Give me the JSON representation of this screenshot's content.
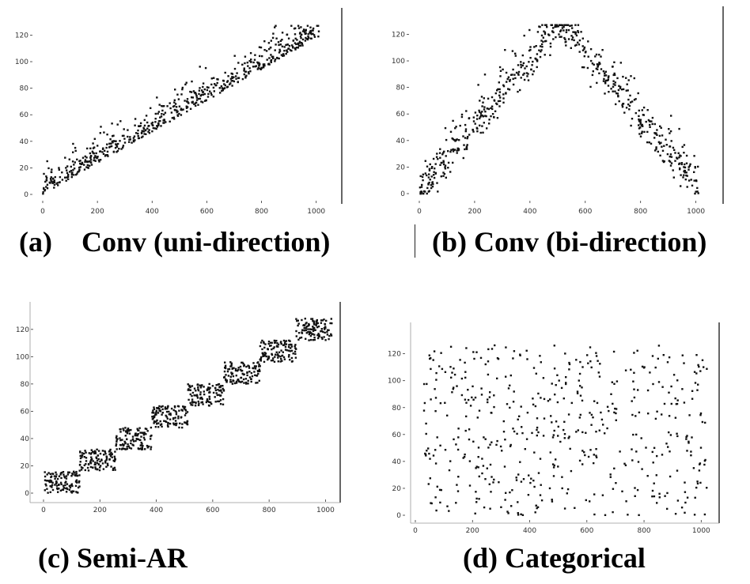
{
  "captions": {
    "a": "(a)",
    "a_text": "Conv (uni-direction)",
    "b": "(b) Conv (bi-direction)",
    "c": "(c) Semi-AR",
    "d": "(d) Categorical"
  },
  "colors": {
    "point": "#111111",
    "axis": "#333333",
    "frame": "#000000"
  },
  "chart_data": [
    {
      "id": "a",
      "type": "scatter",
      "xlim": [
        0,
        1024
      ],
      "ylim": [
        0,
        128
      ],
      "x_ticks": [
        0,
        200,
        400,
        600,
        800,
        1000
      ],
      "y_ticks": [
        0,
        20,
        40,
        60,
        80,
        100,
        120
      ],
      "pattern": "uni",
      "n_points": 620,
      "title": "",
      "xlabel": "",
      "ylabel": ""
    },
    {
      "id": "b",
      "type": "scatter",
      "xlim": [
        0,
        1024
      ],
      "ylim": [
        0,
        128
      ],
      "x_ticks": [
        0,
        200,
        400,
        600,
        800,
        1000
      ],
      "y_ticks": [
        0,
        20,
        40,
        60,
        80,
        100,
        120
      ],
      "pattern": "bi",
      "n_points": 620,
      "title": "",
      "xlabel": "",
      "ylabel": ""
    },
    {
      "id": "c",
      "type": "scatter",
      "xlim": [
        0,
        1024
      ],
      "ylim": [
        0,
        128
      ],
      "x_ticks": [
        0,
        200,
        400,
        600,
        800,
        1000
      ],
      "y_ticks": [
        0,
        20,
        40,
        60,
        80,
        100,
        120
      ],
      "pattern": "semi",
      "n_points": 900,
      "blocks": [
        {
          "x": [
            0,
            128
          ],
          "y": [
            0,
            16
          ]
        },
        {
          "x": [
            128,
            256
          ],
          "y": [
            16,
            32
          ]
        },
        {
          "x": [
            256,
            384
          ],
          "y": [
            32,
            48
          ]
        },
        {
          "x": [
            384,
            512
          ],
          "y": [
            48,
            64
          ]
        },
        {
          "x": [
            512,
            640
          ],
          "y": [
            64,
            80
          ]
        },
        {
          "x": [
            640,
            768
          ],
          "y": [
            80,
            96
          ]
        },
        {
          "x": [
            768,
            896
          ],
          "y": [
            96,
            112
          ]
        },
        {
          "x": [
            896,
            1024
          ],
          "y": [
            112,
            128
          ]
        }
      ],
      "title": "",
      "xlabel": "",
      "ylabel": ""
    },
    {
      "id": "d",
      "type": "scatter",
      "xlim": [
        0,
        1024
      ],
      "ylim": [
        0,
        128
      ],
      "x_ticks": [
        0,
        200,
        400,
        600,
        800,
        1000
      ],
      "y_ticks": [
        0,
        20,
        40,
        60,
        80,
        100,
        120
      ],
      "pattern": "uniform",
      "n_points": 520,
      "title": "",
      "xlabel": "",
      "ylabel": ""
    }
  ]
}
